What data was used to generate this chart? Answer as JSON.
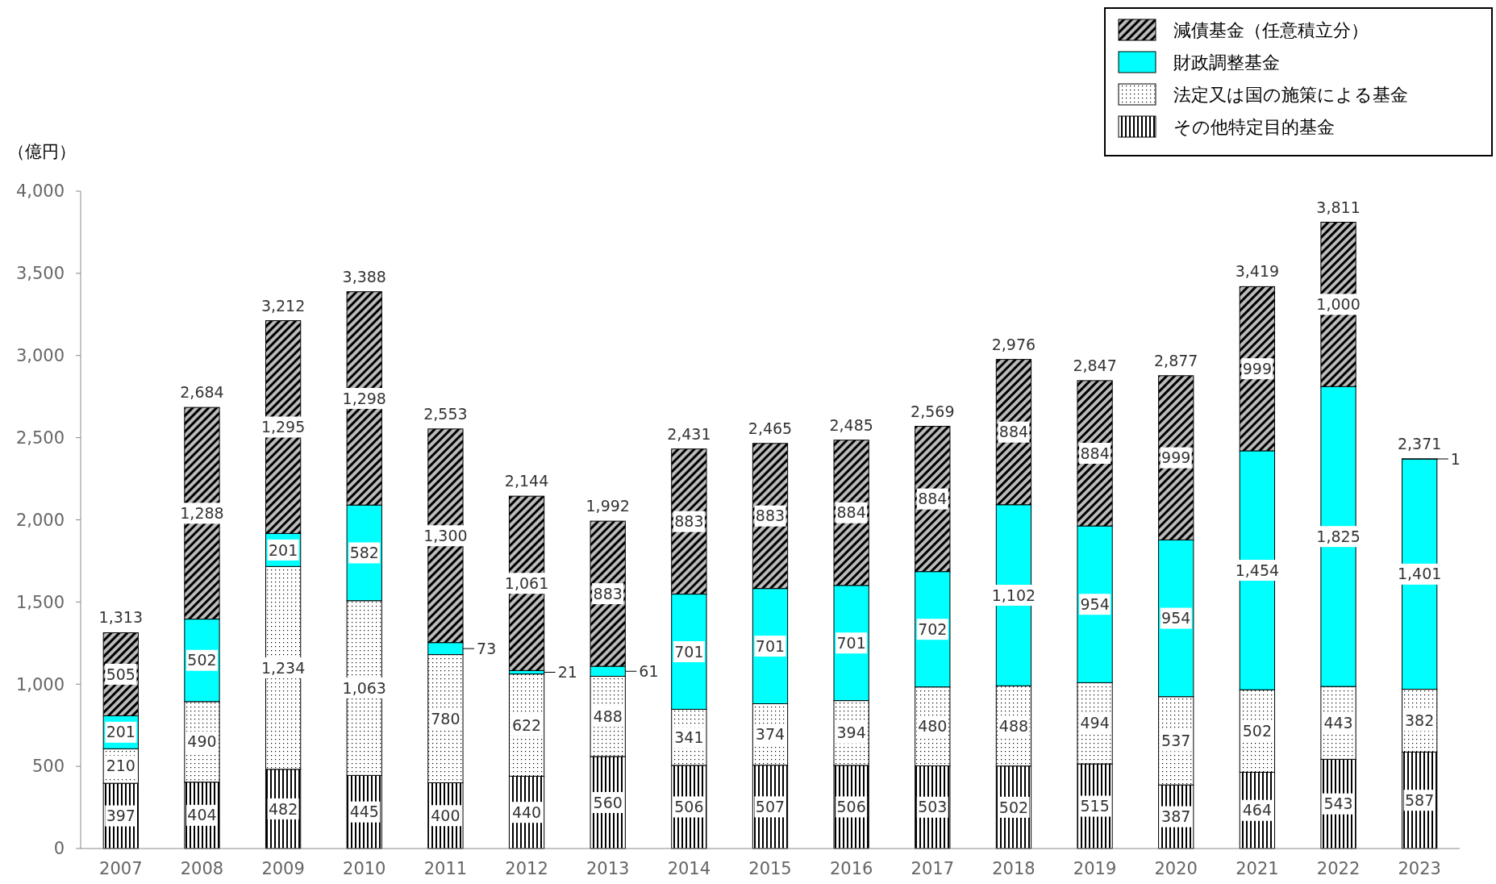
{
  "chart_data": {
    "type": "bar",
    "stacked": true,
    "ylabel": "（億円）",
    "categories": [
      "2007",
      "2008",
      "2009",
      "2010",
      "2011",
      "2012",
      "2013",
      "2014",
      "2015",
      "2016",
      "2017",
      "2018",
      "2019",
      "2020",
      "2021",
      "2022",
      "2023"
    ],
    "series": [
      {
        "name": "その他特定目的基金",
        "color": "#000000",
        "values": [
          397,
          404,
          482,
          445,
          400,
          440,
          560,
          506,
          507,
          506,
          503,
          502,
          515,
          387,
          464,
          543,
          587
        ],
        "value_labels": [
          "397",
          "404",
          "482",
          "445",
          "400",
          "440",
          "560",
          "506",
          "507",
          "506",
          "503",
          "502",
          "515",
          "387",
          "464",
          "543",
          "587"
        ]
      },
      {
        "name": "法定又は国の施策による基金",
        "color": "#000000",
        "values": [
          210,
          490,
          1234,
          1063,
          780,
          622,
          488,
          341,
          374,
          394,
          480,
          488,
          494,
          537,
          502,
          443,
          382
        ],
        "value_labels": [
          "210",
          "490",
          "1,234",
          "1,063",
          "780",
          "622",
          "488",
          "341",
          "374",
          "394",
          "480",
          "488",
          "494",
          "537",
          "502",
          "443",
          "382"
        ]
      },
      {
        "name": "財政調整基金",
        "color": "#00ffff",
        "values": [
          201,
          502,
          201,
          582,
          73,
          21,
          61,
          701,
          701,
          701,
          702,
          1102,
          954,
          954,
          1454,
          1825,
          1401
        ],
        "value_labels": [
          "201",
          "502",
          "201",
          "582",
          "73",
          "21",
          "61",
          "701",
          "701",
          "701",
          "702",
          "1,102",
          "954",
          "954",
          "1,454",
          "1,825",
          "1,401"
        ]
      },
      {
        "name": "減債基金（任意積立分）",
        "color": "#000000",
        "values": [
          505,
          1288,
          1295,
          1298,
          1300,
          1061,
          883,
          883,
          883,
          884,
          884,
          884,
          884,
          999,
          999,
          1000,
          1
        ],
        "value_labels": [
          "505",
          "1,288",
          "1,295",
          "1,298",
          "1,300",
          "1,061",
          "883",
          "883",
          "883",
          "884",
          "884",
          "884",
          "884",
          "999",
          "999",
          "1,000",
          "1"
        ]
      }
    ],
    "totals": [
      "1,313",
      "2,684",
      "3,212",
      "3,388",
      "2,553",
      "2,144",
      "1,992",
      "2,431",
      "2,465",
      "2,485",
      "2,569",
      "2,976",
      "2,847",
      "2,877",
      "3,419",
      "3,811",
      "2,371"
    ],
    "grid": false,
    "legend": "top right",
    "ylim": [
      0,
      4000
    ],
    "yticks": [
      {
        "value": 0,
        "label": "0"
      },
      {
        "value": 500,
        "label": "500"
      },
      {
        "value": 1000,
        "label": "1,000"
      },
      {
        "value": 1500,
        "label": "1,500"
      },
      {
        "value": 2000,
        "label": "2,000"
      },
      {
        "value": 2500,
        "label": "2,500"
      },
      {
        "value": 3000,
        "label": "3,000"
      },
      {
        "value": 3500,
        "label": "3,500"
      },
      {
        "value": 4000,
        "label": "4,000"
      }
    ]
  }
}
